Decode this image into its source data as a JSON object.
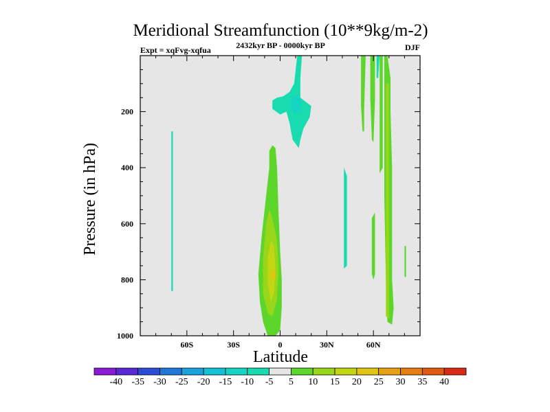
{
  "chart_data": {
    "type": "contour",
    "title": "Meridional Streamfunction (10**9kg/m-2)",
    "subtitle_left": "Expt = xqFvg-xqfua",
    "subtitle_center": "2432kyr BP - 0000kyr BP",
    "subtitle_right": "DJF",
    "xlabel": "Latitude",
    "ylabel": "Pressure (in hPa)",
    "xlim": [
      -90,
      90
    ],
    "ylim": [
      1000,
      0
    ],
    "x_ticks": [
      {
        "value": -60,
        "label": "60S"
      },
      {
        "value": -30,
        "label": "30S"
      },
      {
        "value": 0,
        "label": "0"
      },
      {
        "value": 30,
        "label": "30N"
      },
      {
        "value": 60,
        "label": "60N"
      }
    ],
    "y_ticks": [
      {
        "value": 200,
        "label": "200"
      },
      {
        "value": 400,
        "label": "400"
      },
      {
        "value": 600,
        "label": "600"
      },
      {
        "value": 800,
        "label": "800"
      },
      {
        "value": 1000,
        "label": "1000"
      }
    ],
    "background_color": "#e6e6e6",
    "colorbar": {
      "levels": [
        "-40",
        "-35",
        "-30",
        "-25",
        "-20",
        "-15",
        "-10",
        "-5",
        "5",
        "10",
        "15",
        "20",
        "25",
        "30",
        "35",
        "40"
      ],
      "colors": [
        "#8a1ad6",
        "#5a28d6",
        "#2c4bd6",
        "#1f78d8",
        "#1aa2dc",
        "#14c2d8",
        "#14d4c4",
        "#18dcb0",
        "#e6e6e6",
        "#5cd62a",
        "#98d61a",
        "#c2d614",
        "#e2c414",
        "#e6a214",
        "#e67e14",
        "#e05a14",
        "#d82a14"
      ]
    },
    "regions": [
      {
        "name": "tropical-positive-column",
        "level": "5",
        "color": "#5cd62a",
        "polygon": [
          [
            -8,
            1000
          ],
          [
            -11,
            950
          ],
          [
            -13,
            880
          ],
          [
            -14,
            780
          ],
          [
            -12,
            650
          ],
          [
            -9,
            500
          ],
          [
            -7,
            400
          ],
          [
            -7,
            340
          ],
          [
            -5,
            320
          ],
          [
            -3,
            330
          ],
          [
            -2,
            400
          ],
          [
            -1,
            560
          ],
          [
            0,
            700
          ],
          [
            1,
            800
          ],
          [
            1,
            900
          ],
          [
            0,
            980
          ],
          [
            -3,
            1000
          ]
        ]
      },
      {
        "name": "tropical-positive-inner",
        "level": "10",
        "color": "#98d61a",
        "polygon": [
          [
            -8,
            920
          ],
          [
            -11,
            850
          ],
          [
            -11,
            720
          ],
          [
            -9,
            600
          ],
          [
            -7,
            550
          ],
          [
            -5,
            580
          ],
          [
            -2,
            660
          ],
          [
            -1,
            760
          ],
          [
            -2,
            870
          ],
          [
            -5,
            930
          ]
        ]
      },
      {
        "name": "tropical-positive-core",
        "level": "15",
        "color": "#c2d614",
        "polygon": [
          [
            -6,
            880
          ],
          [
            -8,
            810
          ],
          [
            -8,
            720
          ],
          [
            -6,
            660
          ],
          [
            -4,
            680
          ],
          [
            -3,
            760
          ],
          [
            -4,
            850
          ]
        ]
      },
      {
        "name": "tropical-positive-peak",
        "level": "20",
        "color": "#e2c414",
        "polygon": [
          [
            -5,
            805
          ],
          [
            -6,
            780
          ],
          [
            -5,
            760
          ],
          [
            -3,
            770
          ],
          [
            -3,
            795
          ]
        ]
      },
      {
        "name": "upper-negative-plume",
        "level": "-5",
        "color": "#18dcb0",
        "polygon": [
          [
            11,
            0
          ],
          [
            14,
            0
          ],
          [
            13,
            80
          ],
          [
            13,
            150
          ],
          [
            20,
            180
          ],
          [
            19,
            220
          ],
          [
            15,
            260
          ],
          [
            13,
            300
          ],
          [
            12,
            330
          ],
          [
            8,
            300
          ],
          [
            6,
            240
          ],
          [
            4,
            200
          ],
          [
            0,
            210
          ],
          [
            -5,
            190
          ],
          [
            -5,
            160
          ],
          [
            -2,
            150
          ],
          [
            2,
            145
          ],
          [
            6,
            130
          ],
          [
            9,
            100
          ],
          [
            10,
            50
          ]
        ]
      },
      {
        "name": "upper-negative-core",
        "level": "-10",
        "color": "#14d4c4",
        "polygon": [
          [
            8,
            150
          ],
          [
            12,
            140
          ],
          [
            14,
            165
          ],
          [
            12,
            200
          ],
          [
            9,
            210
          ],
          [
            7,
            180
          ]
        ]
      },
      {
        "name": "southern-negative-strip",
        "level": "-5",
        "color": "#18dcb0",
        "polygon": [
          [
            -70,
            270
          ],
          [
            -69,
            270
          ],
          [
            -69,
            840
          ],
          [
            -70,
            840
          ]
        ]
      },
      {
        "name": "northern-negative-strip",
        "level": "-5",
        "color": "#18dcb0",
        "polygon": [
          [
            41,
            400
          ],
          [
            43,
            430
          ],
          [
            43,
            750
          ],
          [
            41,
            760
          ],
          [
            41,
            600
          ]
        ]
      },
      {
        "name": "polar-positive-strip-a",
        "level": "5",
        "color": "#5cd62a",
        "polygon": [
          [
            52,
            0
          ],
          [
            55,
            0
          ],
          [
            54,
            200
          ],
          [
            54,
            270
          ],
          [
            53,
            270
          ],
          [
            52,
            180
          ]
        ]
      },
      {
        "name": "polar-positive-strip-b",
        "level": "5",
        "color": "#5cd62a",
        "polygon": [
          [
            58,
            0
          ],
          [
            61,
            0
          ],
          [
            61,
            160
          ],
          [
            60,
            310
          ],
          [
            59,
            300
          ],
          [
            58,
            150
          ]
        ]
      },
      {
        "name": "polar-negative-strip",
        "level": "-5",
        "color": "#18dcb0",
        "polygon": [
          [
            62,
            0
          ],
          [
            64,
            0
          ],
          [
            63,
            80
          ],
          [
            62,
            80
          ]
        ]
      },
      {
        "name": "polar-positive-strip-c",
        "level": "5",
        "color": "#5cd62a",
        "polygon": [
          [
            64,
            0
          ],
          [
            66,
            0
          ],
          [
            66,
            400
          ],
          [
            64,
            420
          ]
        ]
      },
      {
        "name": "polar-positive-strip-d",
        "level": "5",
        "color": "#5cd62a",
        "polygon": [
          [
            67,
            0
          ],
          [
            69,
            0
          ],
          [
            71,
            80
          ],
          [
            71,
            200
          ],
          [
            72,
            400
          ],
          [
            72,
            800
          ],
          [
            73,
            900
          ],
          [
            72,
            960
          ],
          [
            69,
            950
          ],
          [
            68,
            800
          ],
          [
            67,
            500
          ]
        ]
      },
      {
        "name": "polar-positive-strip-e",
        "level": "5",
        "color": "#5cd62a",
        "polygon": [
          [
            59,
            580
          ],
          [
            61,
            560
          ],
          [
            61,
            780
          ],
          [
            60,
            800
          ],
          [
            59,
            780
          ]
        ]
      },
      {
        "name": "polar-positive-strip-f",
        "level": "5",
        "color": "#5cd62a",
        "polygon": [
          [
            80,
            680
          ],
          [
            81,
            680
          ],
          [
            81,
            790
          ],
          [
            80,
            790
          ]
        ]
      },
      {
        "name": "polar-positive-inner",
        "level": "10",
        "color": "#98d61a",
        "polygon": [
          [
            68,
            100
          ],
          [
            70,
            100
          ],
          [
            70,
            940
          ],
          [
            68,
            930
          ]
        ]
      }
    ]
  }
}
